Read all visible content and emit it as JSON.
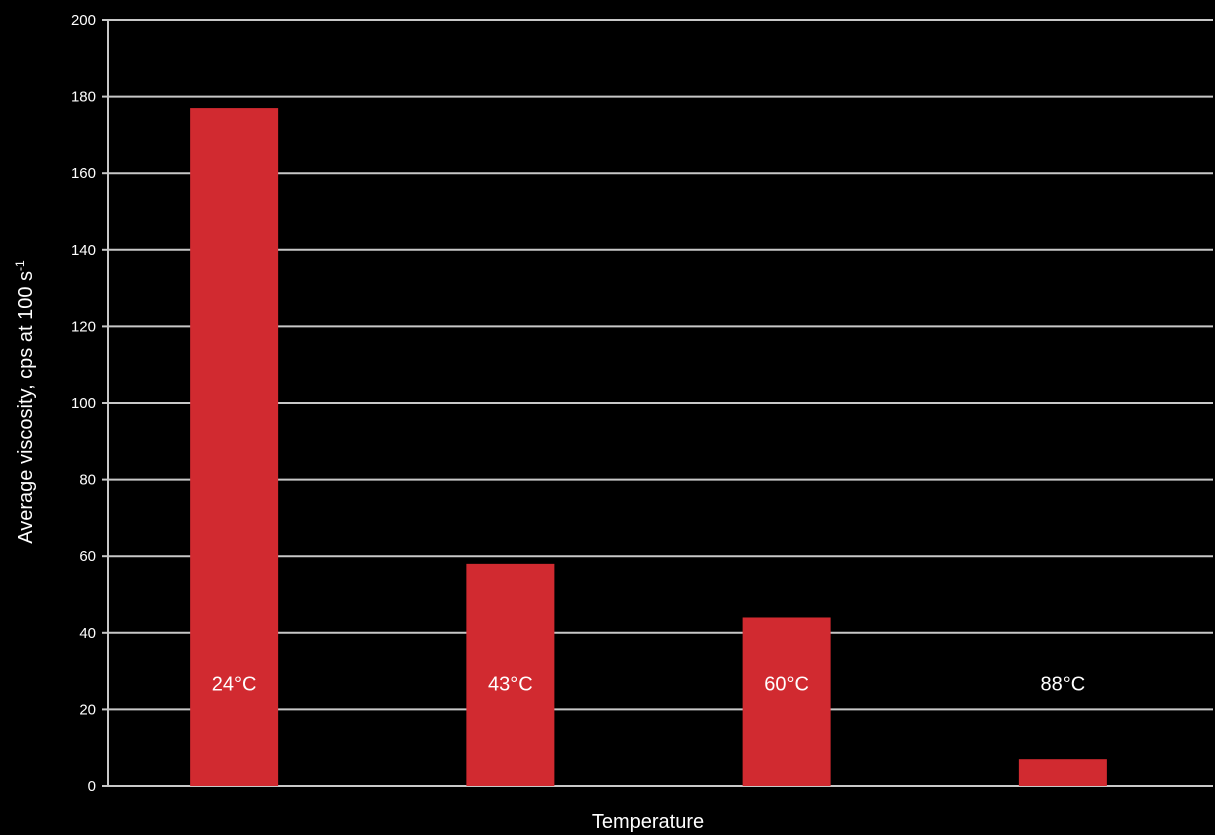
{
  "chart_data": {
    "type": "bar",
    "categories": [
      "24°C",
      "43°C",
      "60°C",
      "88°C"
    ],
    "values": [
      177,
      58,
      44,
      7
    ],
    "xlabel": "Temperature",
    "ylabel": {
      "text": "Average viscosity, cps at 100 s",
      "superscript": "-1"
    },
    "ylim": [
      0,
      200
    ],
    "yticks": [
      "0",
      "20",
      "40",
      "60",
      "80",
      "100",
      "120",
      "140",
      "160",
      "180",
      "200"
    ],
    "grid": true,
    "colors": {
      "background": "#000000",
      "bar": "#d12a30",
      "grid": "#c8c8c8",
      "text": "#ffffff"
    }
  }
}
